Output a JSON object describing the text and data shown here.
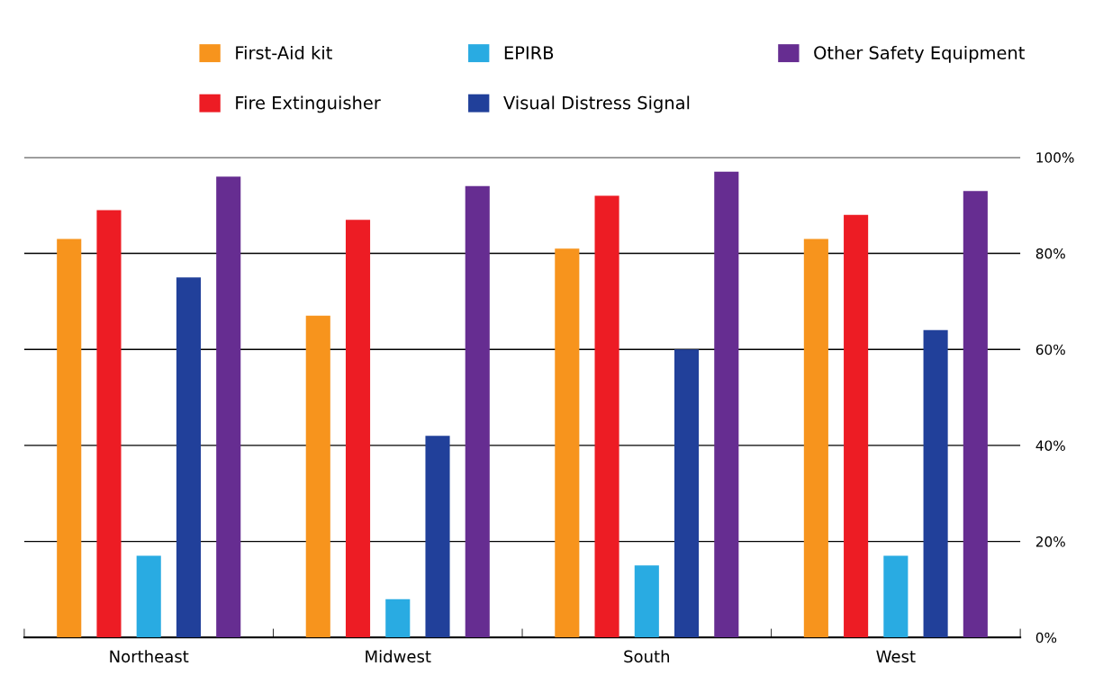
{
  "chart_data": {
    "type": "bar",
    "categories": [
      "Northeast",
      "Midwest",
      "South",
      "West"
    ],
    "series": [
      {
        "name": "First-Aid kit",
        "color": "#f7941d",
        "values": [
          83,
          67,
          81,
          83
        ]
      },
      {
        "name": "Fire Extinguisher",
        "color": "#ed1c24",
        "values": [
          89,
          87,
          92,
          88
        ]
      },
      {
        "name": "EPIRB",
        "color": "#29abe2",
        "values": [
          17,
          8,
          15,
          17
        ]
      },
      {
        "name": "Visual Distress Signal",
        "color": "#21409a",
        "values": [
          75,
          42,
          60,
          64
        ]
      },
      {
        "name": "Other Safety Equipment",
        "color": "#662d91",
        "values": [
          96,
          94,
          97,
          93
        ]
      }
    ],
    "ylim": [
      0,
      100
    ],
    "yticks": [
      {
        "value": 0,
        "label": "0%"
      },
      {
        "value": 20,
        "label": "20%"
      },
      {
        "value": 40,
        "label": "40%"
      },
      {
        "value": 60,
        "label": "60%"
      },
      {
        "value": 80,
        "label": "80%"
      },
      {
        "value": 100,
        "label": "100%"
      }
    ],
    "grid": "y",
    "legend": "top"
  }
}
